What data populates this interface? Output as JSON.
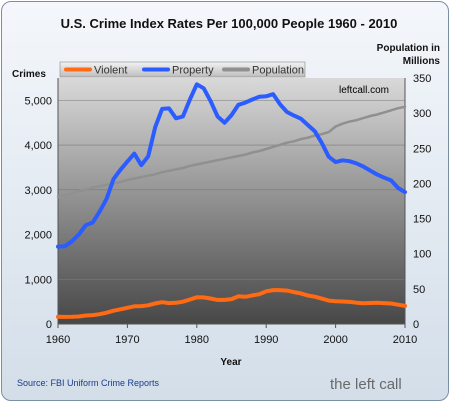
{
  "chart_data": {
    "type": "line",
    "title": "U.S. Crime Index Rates Per 100,000 People 1960 - 2010",
    "ylabel": "Crimes",
    "y2label": [
      "Population in",
      "Millions"
    ],
    "xlabel": "Year",
    "xlim": [
      1960,
      2010
    ],
    "ylim": [
      0,
      5500
    ],
    "y2lim": [
      0,
      350
    ],
    "x_ticks": [
      "1960",
      "1970",
      "1980",
      "1990",
      "2000",
      "2010"
    ],
    "y_ticks": [
      "0",
      "1,000",
      "2,000",
      "3,000",
      "4,000",
      "5,000"
    ],
    "y2_ticks": [
      "0",
      "50",
      "100",
      "150",
      "200",
      "250",
      "300",
      "350"
    ],
    "legend_placement": "top-left",
    "x": [
      1960,
      1961,
      1962,
      1963,
      1964,
      1965,
      1966,
      1967,
      1968,
      1969,
      1970,
      1971,
      1972,
      1973,
      1974,
      1975,
      1976,
      1977,
      1978,
      1979,
      1980,
      1981,
      1982,
      1983,
      1984,
      1985,
      1986,
      1987,
      1988,
      1989,
      1990,
      1991,
      1992,
      1993,
      1994,
      1995,
      1996,
      1997,
      1998,
      1999,
      2000,
      2001,
      2002,
      2003,
      2004,
      2005,
      2006,
      2007,
      2008,
      2009,
      2010
    ],
    "series": [
      {
        "name": "Violent",
        "color": "#ff6a13",
        "axis": "left",
        "values": [
          160,
          158,
          162,
          168,
          190,
          200,
          220,
          253,
          298,
          329,
          363,
          396,
          401,
          417,
          461,
          487,
          467,
          475,
          498,
          548,
          597,
          594,
          571,
          538,
          539,
          556,
          620,
          609,
          640,
          666,
          730,
          758,
          758,
          747,
          714,
          685,
          637,
          611,
          568,
          523,
          507,
          504,
          494,
          476,
          463,
          469,
          474,
          467,
          459,
          432,
          405
        ]
      },
      {
        "name": "Property",
        "color": "#2b5cff",
        "axis": "left",
        "values": [
          1730,
          1740,
          1850,
          2000,
          2210,
          2270,
          2510,
          2800,
          3240,
          3450,
          3630,
          3810,
          3550,
          3750,
          4400,
          4810,
          4820,
          4600,
          4640,
          5020,
          5360,
          5270,
          4980,
          4640,
          4500,
          4670,
          4900,
          4950,
          5020,
          5080,
          5090,
          5140,
          4910,
          4740,
          4660,
          4590,
          4450,
          4310,
          4050,
          3740,
          3620,
          3660,
          3640,
          3590,
          3520,
          3430,
          3340,
          3270,
          3210,
          3040,
          2950
        ]
      },
      {
        "name": "Population",
        "color": "#909090",
        "axis": "right",
        "values": [
          181,
          183,
          186,
          189,
          191,
          194,
          196,
          198,
          200,
          202,
          205,
          207,
          209,
          211,
          213,
          216,
          218,
          220,
          222,
          225,
          227,
          229,
          231,
          233,
          235,
          237,
          239,
          241,
          244,
          246,
          249,
          252,
          255,
          258,
          260,
          263,
          265,
          268,
          270,
          273,
          281,
          285,
          288,
          290,
          293,
          296,
          298,
          301,
          304,
          307,
          309
        ]
      }
    ],
    "watermark": "leftcall.com",
    "source": "Source: FBI Uniform Crime Reports",
    "brand": "the left call"
  }
}
